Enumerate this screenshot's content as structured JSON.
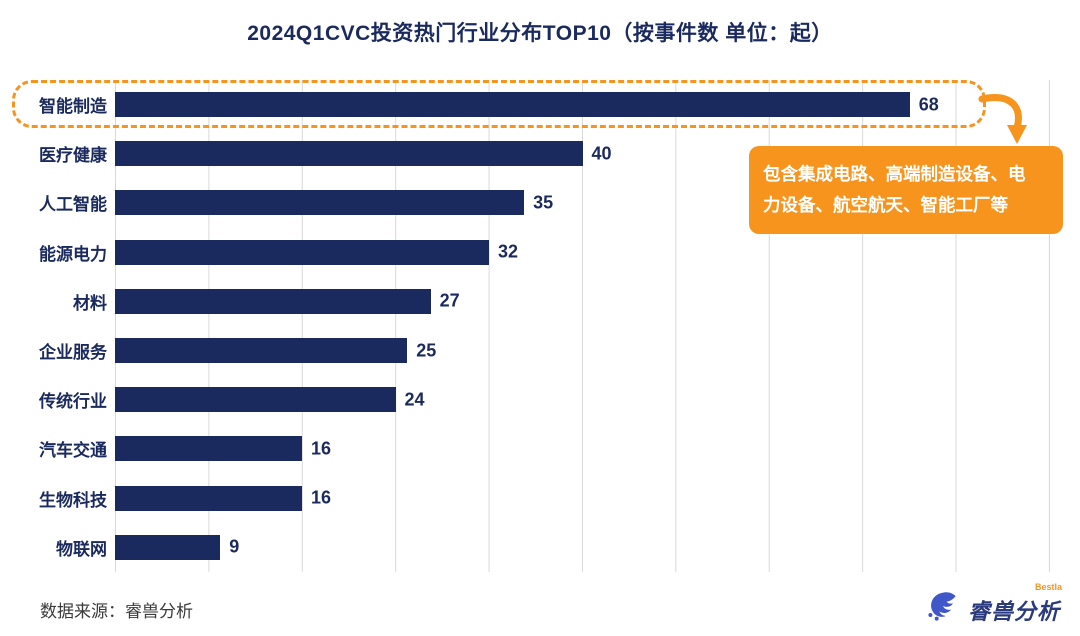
{
  "title": "2024Q1CVC投资热门行业分布TOP10（按事件数 单位：起）",
  "chart_data": {
    "type": "bar",
    "orientation": "horizontal",
    "title": "2024Q1CVC投资热门行业分布TOP10（按事件数 单位：起）",
    "categories": [
      "智能制造",
      "医疗健康",
      "人工智能",
      "能源电力",
      "材料",
      "企业服务",
      "传统行业",
      "汽车交通",
      "生物科技",
      "物联网"
    ],
    "values": [
      68,
      40,
      35,
      32,
      27,
      25,
      24,
      16,
      16,
      9
    ],
    "xlabel": "",
    "ylabel": "",
    "xlim": [
      0,
      80
    ],
    "grid": true,
    "grid_intervals": 10,
    "legend": false,
    "bar_color": "#1b2a5e",
    "highlight": {
      "index": 0,
      "category": "智能制造",
      "style": "orange-dashed-outline"
    }
  },
  "annotation": {
    "text": "包含集成电路、高端制造设备、电\n力设备、航空航天、智能工厂等",
    "bg_color": "#f7941e",
    "text_color": "#ffffff"
  },
  "source": "数据来源：睿兽分析",
  "logo": {
    "text": "睿兽分析",
    "badge": "Bestla"
  },
  "colors": {
    "navy": "#1b2a5e",
    "accent_orange": "#f7941e",
    "grid_line": "#d9d9d9",
    "logo_blue": "#3f57c8"
  }
}
